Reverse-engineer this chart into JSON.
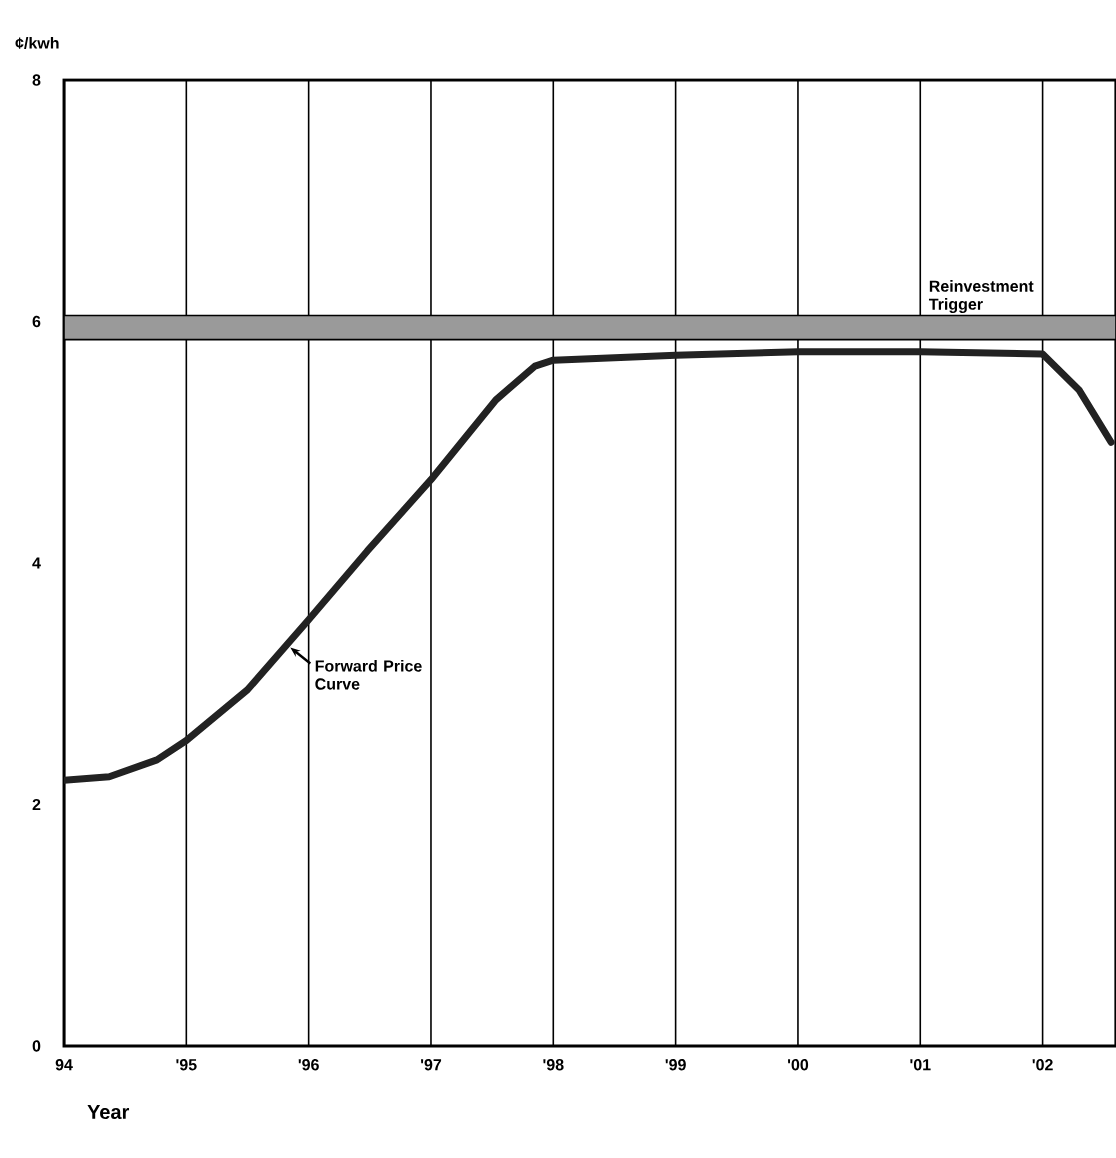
{
  "chart_data": {
    "type": "line",
    "ylabel": "¢/kwh",
    "xlabel": "Year",
    "x": [
      1994,
      1994.37,
      1994.76,
      1995,
      1995.5,
      1996,
      1996.48,
      1997,
      1997.53,
      1997.85,
      1998,
      1999,
      2000,
      2001,
      2002,
      2002.3,
      2002.56
    ],
    "series": [
      {
        "color": "#222222",
        "values": [
          2.2,
          2.23,
          2.37,
          2.53,
          2.95,
          3.53,
          4.1,
          4.69,
          5.35,
          5.63,
          5.68,
          5.72,
          5.75,
          5.75,
          5.73,
          5.43,
          5.0
        ]
      }
    ],
    "xlim": [
      1994,
      2002.6
    ],
    "ylim": [
      0,
      8
    ],
    "xticks": [
      {
        "value": 1994,
        "label": "94"
      },
      {
        "value": 1995,
        "label": "'95"
      },
      {
        "value": 1996,
        "label": "'96"
      },
      {
        "value": 1997,
        "label": "'97"
      },
      {
        "value": 1998,
        "label": "'98"
      },
      {
        "value": 1999,
        "label": "'99"
      },
      {
        "value": 2000,
        "label": "'00"
      },
      {
        "value": 2001,
        "label": "'01"
      },
      {
        "value": 2002,
        "label": "'02"
      }
    ],
    "yticks": [
      0,
      2,
      4,
      6,
      8
    ],
    "grid": "x",
    "bands": [
      {
        "axis": "y",
        "from": 5.85,
        "to": 6.05,
        "label": "Reinvestment Trigger",
        "color": "#9a9a9a"
      }
    ],
    "annotations": [
      {
        "text": "Forward Price Curve",
        "x": 1995.85,
        "y": 3.3
      }
    ],
    "marker": "none",
    "line_style": "solid"
  }
}
